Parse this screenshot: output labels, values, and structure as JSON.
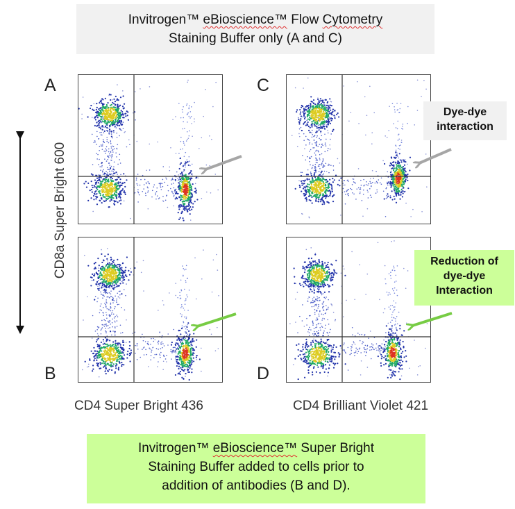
{
  "top_note": {
    "line1_prefix": "Invitrogen™ ",
    "line1_brand": "eBioscience™",
    "line1_suffix": " Flow ",
    "line1_cyto": "Cytometry",
    "line2": "Staining Buffer only (A and C)"
  },
  "panels": {
    "a": {
      "letter": "A"
    },
    "b": {
      "letter": "B"
    },
    "c": {
      "letter": "C"
    },
    "d": {
      "letter": "D"
    }
  },
  "callouts": {
    "dye_dye": {
      "line1": "Dye-dye",
      "line2": "interaction"
    },
    "reduction": {
      "line1": "Reduction of",
      "line2": "dye-dye",
      "line3": "Interaction"
    }
  },
  "axes": {
    "y_label": "CD8a Super Bright 600",
    "x_label_left": "CD4 Super Bright 436",
    "x_label_right": "CD4 Brilliant Violet 421"
  },
  "bottom_note": {
    "line1_prefix": "Invitrogen™ ",
    "line1_brand": "eBioscience™",
    "line1_suffix": " Super Bright",
    "line2": "Staining Buffer added to cells prior to",
    "line3": "addition of antibodies (B and D)."
  },
  "colors": {
    "gray_arrow": "#a6a6a6",
    "green_arrow": "#77cc44",
    "gray_box": "#f1f1f1",
    "green_box": "#ccff99",
    "density_low": "#2233aa",
    "density_mid": "#22aa66",
    "density_high": "#ddcc22",
    "density_peak": "#dd3322"
  }
}
